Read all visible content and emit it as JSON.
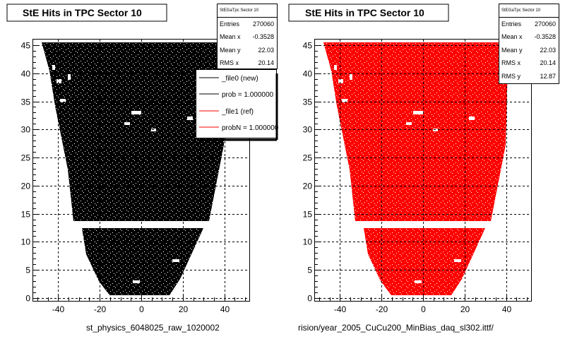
{
  "chart_data": [
    {
      "type": "scatter",
      "title": "StE Hits in TPC Sector 10",
      "color": "#000000",
      "xlim": [
        -52,
        52
      ],
      "ylim": [
        -0.5,
        46
      ],
      "xticks": [
        -40,
        -20,
        0,
        20,
        40
      ],
      "yticks": [
        0,
        5,
        10,
        15,
        20,
        25,
        30,
        35,
        40,
        45
      ],
      "grid": true,
      "region": "trapezoid of hits spanning x from about -48..48 at y=45 down to -14..14 at y=1, gap near y=13.5",
      "stats": {
        "title": "StEGaTpc Sector 10",
        "rows": [
          {
            "label": "Entries",
            "value": "270060"
          },
          {
            "label": "Mean x",
            "value": "-0.3528"
          },
          {
            "label": "Mean y",
            "value": "22.03"
          },
          {
            "label": "RMS x",
            "value": "20.14"
          }
        ]
      },
      "legend": [
        {
          "label": "_file0 (new)",
          "color": "#000000"
        },
        {
          "label": "prob = 1.000000",
          "color": "#000000"
        },
        {
          "label": "_file1 (ref)",
          "color": "#ff0000"
        },
        {
          "label": "probN = 1.000000",
          "color": "#ff0000"
        }
      ],
      "footer_label": "st_physics_6048025_raw_1020002"
    },
    {
      "type": "scatter",
      "title": "StE Hits in TPC Sector 10",
      "color": "#ff0000",
      "xlim": [
        -52,
        52
      ],
      "ylim": [
        -0.5,
        46
      ],
      "xticks": [
        -40,
        -20,
        0,
        20,
        40
      ],
      "yticks": [
        0,
        5,
        10,
        15,
        20,
        25,
        30,
        35,
        40,
        45
      ],
      "grid": true,
      "stats": {
        "title": "StEGaTpc Sector 10",
        "rows": [
          {
            "label": "Entries",
            "value": "270060"
          },
          {
            "label": "Mean x",
            "value": "-0.3528"
          },
          {
            "label": "Mean y",
            "value": "22.03"
          },
          {
            "label": "RMS x",
            "value": "20.14"
          },
          {
            "label": "RMS y",
            "value": "12.87"
          }
        ]
      },
      "footer_label": "rision/year_2005_CuCu200_MinBias_daq_sl302.ittf/"
    }
  ]
}
